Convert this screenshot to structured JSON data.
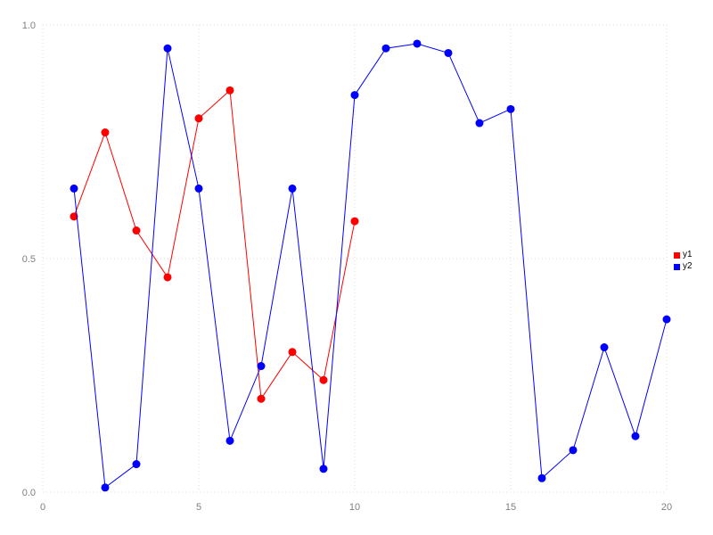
{
  "chart_data": {
    "type": "line",
    "title": "",
    "xlabel": "",
    "ylabel": "",
    "xlim": [
      0,
      20
    ],
    "ylim": [
      0.0,
      1.0
    ],
    "x_ticks": [
      0,
      5,
      10,
      15,
      20
    ],
    "x_tick_labels": [
      "0",
      "5",
      "10",
      "15",
      "20"
    ],
    "y_ticks": [
      0.0,
      0.5,
      1.0
    ],
    "y_tick_labels": [
      "0.0",
      "0.5",
      "1.0"
    ],
    "grid": "dotted",
    "legend_position": "right",
    "marker": "circle",
    "series": [
      {
        "name": "y1",
        "color": "#ff0000",
        "x": [
          1,
          2,
          3,
          4,
          5,
          6,
          7,
          8,
          9,
          10
        ],
        "y": [
          0.59,
          0.77,
          0.56,
          0.46,
          0.8,
          0.86,
          0.2,
          0.3,
          0.24,
          0.58
        ]
      },
      {
        "name": "y2",
        "color": "#0000ff",
        "x": [
          1,
          2,
          3,
          4,
          5,
          6,
          7,
          8,
          9,
          10,
          11,
          12,
          13,
          14,
          15,
          16,
          17,
          18,
          19,
          20
        ],
        "y": [
          0.65,
          0.01,
          0.06,
          0.95,
          0.65,
          0.11,
          0.27,
          0.65,
          0.05,
          0.85,
          0.95,
          0.96,
          0.94,
          0.79,
          0.82,
          0.03,
          0.09,
          0.31,
          0.12,
          0.37
        ]
      }
    ],
    "style": {
      "grid_color": "#dddddd",
      "tick_label_color": "#808080",
      "background": "#ffffff"
    }
  }
}
